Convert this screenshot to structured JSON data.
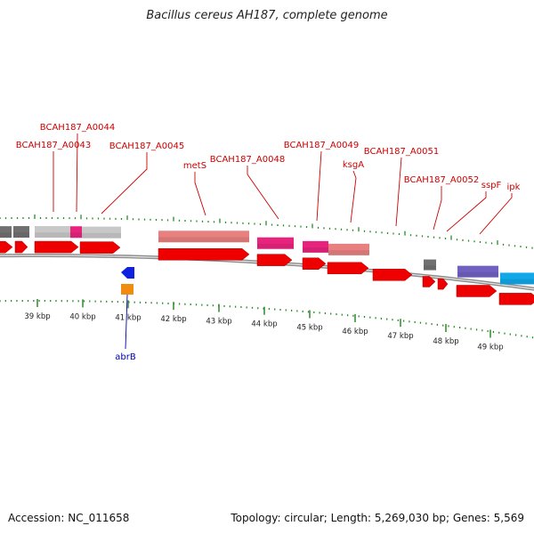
{
  "title": "Bacillus cereus AH187, complete genome",
  "footer": {
    "accession": "Accession: NC_011658",
    "topology": "Topology: circular; Length: 5,269,030 bp; Genes: 5,569"
  },
  "colors": {
    "label_red": "#cc0000",
    "label_blue": "#0000aa",
    "tick_green": "#2a8a2a",
    "gene_red": "#ee0000",
    "pink": "#e8237e",
    "light_red": "#e88080",
    "light_gray": "#c8c8c8",
    "dark_gray": "#707070",
    "purple": "#7060c0",
    "cyan": "#10a8e8",
    "blue": "#1020e0",
    "orange": "#f08c10",
    "backbone": "#8c8c8c"
  },
  "scale_labels": [
    "39 kbp",
    "40 kbp",
    "41 kbp",
    "42 kbp",
    "43 kbp",
    "44 kbp",
    "45 kbp",
    "46 kbp",
    "47 kbp",
    "48 kbp",
    "49 kbp"
  ],
  "gene_labels": [
    {
      "name": "BCAH187_A0044"
    },
    {
      "name": "BCAH187_A0043"
    },
    {
      "name": "BCAH187_A0045"
    },
    {
      "name": "metS"
    },
    {
      "name": "BCAH187_A0048"
    },
    {
      "name": "BCAH187_A0049"
    },
    {
      "name": "ksgA"
    },
    {
      "name": "BCAH187_A0051"
    },
    {
      "name": "BCAH187_A0052"
    },
    {
      "name": "sspF"
    },
    {
      "name": "ipk"
    },
    {
      "name": "abrB"
    }
  ]
}
